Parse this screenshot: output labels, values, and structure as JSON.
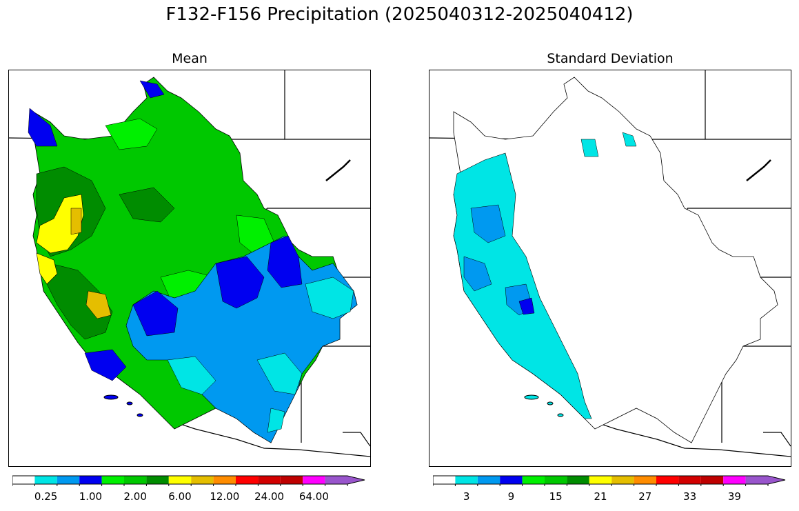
{
  "title": "F132-F156 Precipitation (2025040312-2025040412)",
  "panels": [
    {
      "id": "mean",
      "title": "Mean"
    },
    {
      "id": "std",
      "title": "Standard Deviation"
    }
  ],
  "colorbar_colors": [
    "#ffffff",
    "#00e5e5",
    "#0099f0",
    "#0000f0",
    "#00f000",
    "#00c800",
    "#008c00",
    "#ffff00",
    "#e5be00",
    "#ff8c00",
    "#ff0000",
    "#d20000",
    "#be0000",
    "#ff00ff",
    "#9955cc"
  ],
  "mean_colorbar": {
    "tick_labels": [
      "0.25",
      "1.00",
      "2.00",
      "6.00",
      "12.00",
      "24.00",
      "64.00"
    ],
    "tick_positions_index": [
      1,
      3,
      5,
      7,
      9,
      11,
      13
    ]
  },
  "std_colorbar": {
    "tick_labels": [
      "3",
      "9",
      "15",
      "21",
      "27",
      "33",
      "39"
    ],
    "tick_positions_index": [
      1,
      3,
      5,
      7,
      9,
      11,
      13
    ]
  }
}
